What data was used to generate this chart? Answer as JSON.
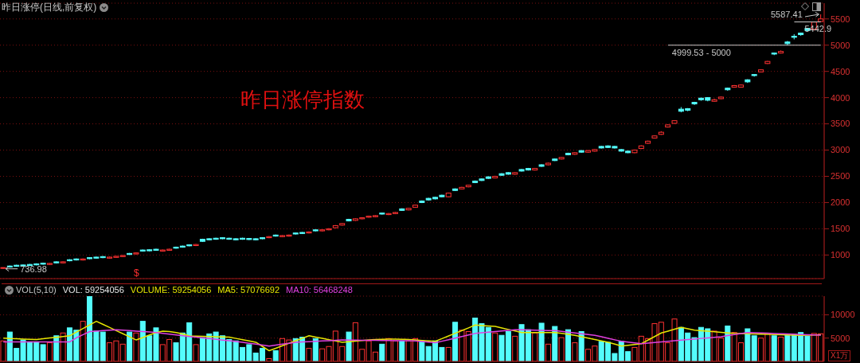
{
  "chart_data": [
    {
      "type": "candlestick",
      "title": "昨日涨停(日线,前复权)",
      "categories": [
        null,
        null,
        null,
        null,
        null,
        null,
        null,
        null,
        null,
        null,
        null,
        null,
        null,
        null,
        null,
        null,
        null,
        null,
        null,
        null,
        null,
        null,
        null,
        null,
        null,
        null,
        null,
        null,
        null,
        null,
        null,
        null,
        null,
        null,
        null,
        null,
        null,
        null,
        null,
        null,
        null,
        null,
        null,
        null,
        null,
        null,
        null,
        null,
        null,
        null,
        null,
        null,
        null,
        null,
        null,
        null,
        null,
        null,
        null,
        null,
        null,
        null,
        null,
        null,
        null,
        null,
        null,
        null,
        null,
        null,
        null,
        null,
        null,
        null,
        null,
        null,
        null,
        null,
        null,
        null,
        null,
        null,
        null,
        null,
        null,
        null,
        null,
        null,
        null,
        null,
        null,
        null,
        null,
        null,
        null,
        null,
        null,
        null,
        null,
        null,
        null,
        null,
        null,
        null,
        null,
        null,
        null,
        null,
        null,
        null,
        null,
        null,
        null,
        null,
        null,
        null,
        null,
        null,
        null,
        null,
        null,
        null,
        null,
        null
      ],
      "ohlc": [
        [
          745,
          765,
          736.98,
          760
        ],
        [
          790,
          800,
          760,
          770
        ],
        [
          805,
          815,
          775,
          785
        ],
        [
          810,
          820,
          780,
          790
        ],
        [
          820,
          830,
          790,
          800
        ],
        [
          832,
          842,
          802,
          812
        ],
        [
          845,
          855,
          815,
          825
        ],
        [
          820,
          850,
          810,
          840
        ],
        [
          870,
          880,
          840,
          850
        ],
        [
          850,
          880,
          840,
          870
        ],
        [
          910,
          920,
          880,
          890
        ],
        [
          925,
          935,
          895,
          905
        ],
        [
          905,
          935,
          895,
          925
        ],
        [
          950,
          960,
          920,
          930
        ],
        [
          960,
          970,
          930,
          940
        ],
        [
          970,
          980,
          940,
          950
        ],
        [
          940,
          970,
          930,
          960
        ],
        [
          955,
          985,
          945,
          975
        ],
        [
          970,
          1000,
          960,
          990
        ],
        [
          1030,
          1040,
          1000,
          1010
        ],
        [
          1020,
          1050,
          1010,
          1040
        ],
        [
          1095,
          1105,
          1065,
          1075
        ],
        [
          1100,
          1110,
          1070,
          1080
        ],
        [
          1110,
          1120,
          1080,
          1090
        ],
        [
          1075,
          1105,
          1065,
          1095
        ],
        [
          1090,
          1120,
          1080,
          1110
        ],
        [
          1150,
          1160,
          1120,
          1130
        ],
        [
          1170,
          1180,
          1140,
          1150
        ],
        [
          1195,
          1205,
          1165,
          1175
        ],
        [
          1180,
          1210,
          1170,
          1200
        ],
        [
          1300,
          1310,
          1250,
          1260
        ],
        [
          1310,
          1320,
          1280,
          1290
        ],
        [
          1320,
          1330,
          1290,
          1300
        ],
        [
          1330,
          1340,
          1300,
          1310
        ],
        [
          1320,
          1330,
          1290,
          1300
        ],
        [
          1310,
          1320,
          1280,
          1290
        ],
        [
          1320,
          1330,
          1290,
          1300
        ],
        [
          1315,
          1325,
          1285,
          1295
        ],
        [
          1310,
          1320,
          1280,
          1290
        ],
        [
          1330,
          1340,
          1300,
          1310
        ],
        [
          1330,
          1360,
          1320,
          1350
        ],
        [
          1380,
          1390,
          1350,
          1360
        ],
        [
          1350,
          1380,
          1340,
          1370
        ],
        [
          1360,
          1390,
          1350,
          1380
        ],
        [
          1420,
          1430,
          1390,
          1400
        ],
        [
          1430,
          1440,
          1400,
          1410
        ],
        [
          1420,
          1450,
          1410,
          1440
        ],
        [
          1480,
          1490,
          1450,
          1460
        ],
        [
          1460,
          1490,
          1450,
          1480
        ],
        [
          1480,
          1510,
          1470,
          1500
        ],
        [
          1520,
          1570,
          1510,
          1560
        ],
        [
          1570,
          1610,
          1560,
          1600
        ],
        [
          1680,
          1690,
          1640,
          1650
        ],
        [
          1660,
          1700,
          1650,
          1690
        ],
        [
          1690,
          1720,
          1680,
          1710
        ],
        [
          1720,
          1750,
          1710,
          1740
        ],
        [
          1730,
          1760,
          1720,
          1750
        ],
        [
          1800,
          1810,
          1770,
          1780
        ],
        [
          1770,
          1800,
          1760,
          1790
        ],
        [
          1790,
          1820,
          1780,
          1810
        ],
        [
          1880,
          1890,
          1840,
          1850
        ],
        [
          1860,
          1900,
          1850,
          1890
        ],
        [
          1910,
          1960,
          1900,
          1950
        ],
        [
          2030,
          2040,
          1990,
          2000
        ],
        [
          2080,
          2090,
          2040,
          2050
        ],
        [
          2100,
          2110,
          2060,
          2070
        ],
        [
          2140,
          2150,
          2100,
          2110
        ],
        [
          2110,
          2190,
          2100,
          2180
        ],
        [
          2260,
          2270,
          2220,
          2230
        ],
        [
          2260,
          2300,
          2250,
          2290
        ],
        [
          2300,
          2340,
          2290,
          2330
        ],
        [
          2410,
          2420,
          2370,
          2380
        ],
        [
          2450,
          2460,
          2410,
          2420
        ],
        [
          2490,
          2500,
          2450,
          2460
        ],
        [
          2470,
          2510,
          2460,
          2500
        ],
        [
          2550,
          2560,
          2510,
          2520
        ],
        [
          2570,
          2580,
          2530,
          2540
        ],
        [
          2540,
          2580,
          2530,
          2570
        ],
        [
          2630,
          2640,
          2590,
          2600
        ],
        [
          2650,
          2660,
          2610,
          2620
        ],
        [
          2620,
          2660,
          2610,
          2650
        ],
        [
          2720,
          2730,
          2680,
          2690
        ],
        [
          2720,
          2760,
          2710,
          2750
        ],
        [
          2830,
          2840,
          2790,
          2800
        ],
        [
          2830,
          2870,
          2820,
          2860
        ],
        [
          2940,
          2950,
          2900,
          2910
        ],
        [
          2920,
          2960,
          2910,
          2950
        ],
        [
          2990,
          3000,
          2950,
          2960
        ],
        [
          2960,
          3000,
          2950,
          2990
        ],
        [
          2980,
          3020,
          2970,
          3010
        ],
        [
          3070,
          3080,
          3030,
          3040
        ],
        [
          3080,
          3090,
          3040,
          3050
        ],
        [
          3070,
          3080,
          3030,
          3040
        ],
        [
          3010,
          3020,
          2970,
          2980
        ],
        [
          2980,
          2990,
          2940,
          2950
        ],
        [
          2950,
          3010,
          2940,
          3000
        ],
        [
          3030,
          3090,
          3020,
          3080
        ],
        [
          3130,
          3180,
          3120,
          3170
        ],
        [
          3230,
          3280,
          3220,
          3270
        ],
        [
          3300,
          3360,
          3290,
          3340
        ],
        [
          3440,
          3490,
          3430,
          3480
        ],
        [
          3510,
          3570,
          3500,
          3560
        ],
        [
          3780,
          3820,
          3720,
          3740
        ],
        [
          3790,
          3800,
          3740,
          3760
        ],
        [
          3910,
          3920,
          3860,
          3880
        ],
        [
          3990,
          4000,
          3940,
          3960
        ],
        [
          4000,
          4010,
          3930,
          3950
        ],
        [
          3930,
          3980,
          3920,
          3960
        ],
        [
          3980,
          4020,
          3970,
          4010
        ],
        [
          4180,
          4190,
          4130,
          4150
        ],
        [
          4200,
          4240,
          4190,
          4230
        ],
        [
          4200,
          4250,
          4190,
          4240
        ],
        [
          4340,
          4350,
          4280,
          4300
        ],
        [
          4440,
          4450,
          4400,
          4420
        ],
        [
          4490,
          4540,
          4480,
          4530
        ],
        [
          4650,
          4700,
          4640,
          4690
        ],
        [
          4850,
          4860,
          4810,
          4830
        ],
        [
          4850,
          4900,
          4840,
          4880
        ],
        [
          5060,
          5080,
          5000,
          5030
        ],
        [
          5170,
          5210,
          5110,
          5150
        ],
        [
          5230,
          5240,
          5180,
          5200
        ],
        [
          5320,
          5330,
          5260,
          5280
        ],
        [
          5300,
          5450,
          5280,
          5440
        ],
        [
          5450,
          5587.41,
          5440,
          5500
        ]
      ],
      "ylim": [
        550,
        5800
      ],
      "yticks": [
        1000,
        1500,
        2000,
        2500,
        3000,
        3500,
        4000,
        4500,
        5000,
        5500
      ],
      "grid": "y",
      "ref_lines": [
        {
          "axis": "y",
          "value": 5442.9,
          "label": "5442.9",
          "color": "#c8c8c8"
        },
        {
          "axis": "y",
          "value": 4999.53,
          "label": "4999.53 - 5000",
          "color": "#c8c8c8"
        }
      ],
      "annotations": [
        "昨日涨停指数",
        "5587.41",
        {
          "text": "736.98",
          "y": 736.98
        },
        "$"
      ]
    },
    {
      "type": "bar",
      "title": "VOL(5,10)",
      "ylabel": "X1万",
      "categories": [
        null,
        null,
        null,
        null,
        null,
        null,
        null,
        null,
        null,
        null,
        null,
        null,
        null,
        null,
        null,
        null,
        null,
        null,
        null,
        null,
        null,
        null,
        null,
        null,
        null,
        null,
        null,
        null,
        null,
        null,
        null,
        null,
        null,
        null,
        null,
        null,
        null,
        null,
        null,
        null,
        null,
        null,
        null,
        null,
        null,
        null,
        null,
        null,
        null,
        null,
        null,
        null,
        null,
        null,
        null,
        null,
        null,
        null,
        null,
        null,
        null,
        null,
        null,
        null,
        null,
        null,
        null,
        null,
        null,
        null,
        null,
        null,
        null,
        null,
        null,
        null,
        null,
        null,
        null,
        null,
        null,
        null,
        null,
        null,
        null,
        null,
        null,
        null,
        null,
        null,
        null,
        null,
        null,
        null,
        null,
        null,
        null,
        null,
        null,
        null,
        null,
        null,
        null,
        null,
        null,
        null,
        null,
        null,
        null,
        null,
        null,
        null,
        null,
        null,
        null,
        null,
        null,
        null,
        null,
        null,
        null,
        null,
        null,
        null
      ],
      "series": [
        {
          "type": "bar",
          "values": [
            4400,
            6300,
            2800,
            4600,
            4200,
            4200,
            3600,
            4000,
            5500,
            6100,
            7200,
            6700,
            8600,
            13900,
            6500,
            6300,
            4000,
            4400,
            3700,
            6300,
            6100,
            8600,
            5500,
            7200,
            3600,
            4700,
            4000,
            6100,
            8300,
            3600,
            5100,
            5900,
            6300,
            5500,
            4700,
            4400,
            3000,
            3600,
            1800,
            2800,
            600,
            2300,
            4900,
            4600,
            4900,
            5200,
            2800,
            4900,
            2700,
            3200,
            6500,
            3200,
            6300,
            8300,
            2600,
            4400,
            2000,
            3700,
            4900,
            4400,
            4400,
            4400,
            4900,
            4400,
            3200,
            4400,
            3000,
            3000,
            8400,
            6700,
            6400,
            9300,
            8100,
            7300,
            6100,
            5600,
            6400,
            5400,
            7900,
            6800,
            6100,
            8200,
            3700,
            7500,
            5100,
            6800,
            4000,
            6400,
            2600,
            3300,
            4300,
            4100,
            1700,
            4300,
            2100,
            3000,
            5400,
            4900,
            8100,
            8400,
            4000,
            9100,
            7300,
            6100,
            5100,
            7300,
            7000,
            6500,
            5000,
            7600,
            6200,
            4000,
            7000,
            5500,
            5000,
            6000,
            5500,
            5200,
            5600,
            5800,
            6200,
            5400,
            6000,
            5925.4056
          ],
          "colors": [
            "#ff3232",
            "#54fcfc",
            "#54fcfc",
            "#54fcfc",
            "#54fcfc",
            "#54fcfc",
            "#54fcfc",
            "#ff3232",
            "#54fcfc",
            "#ff3232",
            "#54fcfc",
            "#54fcfc",
            "#ff3232",
            "#54fcfc",
            "#54fcfc",
            "#54fcfc",
            "#ff3232",
            "#ff3232",
            "#ff3232",
            "#54fcfc",
            "#ff3232",
            "#54fcfc",
            "#54fcfc",
            "#54fcfc",
            "#ff3232",
            "#ff3232",
            "#54fcfc",
            "#54fcfc",
            "#54fcfc",
            "#ff3232",
            "#54fcfc",
            "#54fcfc",
            "#54fcfc",
            "#54fcfc",
            "#54fcfc",
            "#54fcfc",
            "#54fcfc",
            "#54fcfc",
            "#54fcfc",
            "#54fcfc",
            "#ff3232",
            "#54fcfc",
            "#ff3232",
            "#ff3232",
            "#54fcfc",
            "#54fcfc",
            "#ff3232",
            "#54fcfc",
            "#ff3232",
            "#ff3232",
            "#ff3232",
            "#ff3232",
            "#54fcfc",
            "#ff3232",
            "#ff3232",
            "#ff3232",
            "#ff3232",
            "#54fcfc",
            "#ff3232",
            "#ff3232",
            "#54fcfc",
            "#ff3232",
            "#ff3232",
            "#54fcfc",
            "#54fcfc",
            "#54fcfc",
            "#54fcfc",
            "#ff3232",
            "#54fcfc",
            "#ff3232",
            "#ff3232",
            "#54fcfc",
            "#54fcfc",
            "#54fcfc",
            "#ff3232",
            "#54fcfc",
            "#54fcfc",
            "#ff3232",
            "#54fcfc",
            "#54fcfc",
            "#ff3232",
            "#54fcfc",
            "#ff3232",
            "#54fcfc",
            "#ff3232",
            "#54fcfc",
            "#ff3232",
            "#54fcfc",
            "#ff3232",
            "#ff3232",
            "#54fcfc",
            "#54fcfc",
            "#54fcfc",
            "#54fcfc",
            "#54fcfc",
            "#ff3232",
            "#ff3232",
            "#ff3232",
            "#ff3232",
            "#ff3232",
            "#ff3232",
            "#ff3232",
            "#54fcfc",
            "#54fcfc",
            "#54fcfc",
            "#54fcfc",
            "#54fcfc",
            "#ff3232",
            "#ff3232",
            "#54fcfc",
            "#ff3232",
            "#ff3232",
            "#54fcfc",
            "#54fcfc",
            "#ff3232",
            "#ff3232",
            "#54fcfc",
            "#ff3232",
            "#54fcfc",
            "#54fcfc",
            "#54fcfc",
            "#54fcfc",
            "#ff3232",
            "#ff3232"
          ]
        },
        {
          "type": "line",
          "color": "#e6e600",
          "values": [
            5000,
            4900,
            4850,
            4800,
            4750,
            4700,
            4860,
            5020,
            5180,
            5340,
            5500,
            6280,
            7050,
            7830,
            8600,
            7930,
            7270,
            6600,
            5930,
            5270,
            4600,
            5130,
            5670,
            6200,
            6500,
            6400,
            6200,
            5900,
            5460,
            5410,
            5370,
            5330,
            5290,
            5240,
            5200,
            4930,
            4650,
            4380,
            4100,
            3200,
            2300,
            2830,
            3370,
            3900,
            4430,
            4970,
            5500,
            5220,
            4940,
            4660,
            4380,
            4100,
            4230,
            4350,
            4480,
            4600,
            4700,
            4750,
            4800,
            4800,
            4750,
            4700,
            4600,
            4500,
            4400,
            4300,
            4880,
            5460,
            6040,
            6620,
            7200,
            7800,
            7700,
            7600,
            7500,
            7180,
            6850,
            6530,
            6200,
            6200,
            6200,
            6200,
            6200,
            6200,
            6000,
            5800,
            5600,
            5300,
            5000,
            4700,
            4400,
            4100,
            3700,
            3300,
            3470,
            3630,
            3800,
            4570,
            5330,
            6100,
            6500,
            6900,
            7300,
            7000,
            6700,
            6580,
            6470,
            6350,
            6230,
            6120,
            6000,
            5960,
            5920,
            5880,
            5840,
            5800,
            5760,
            5720,
            5680,
            5640,
            5600,
            5640,
            5670,
            5707.6692
          ]
        },
        {
          "type": "line",
          "color": "#e040e0",
          "values": [
            4200,
            4200,
            4200,
            4200,
            4200,
            4200,
            4200,
            4200,
            4200,
            4200,
            4200,
            5070,
            5730,
            6400,
            6500,
            6600,
            6700,
            6800,
            6700,
            6600,
            6500,
            6400,
            6300,
            6200,
            6030,
            5850,
            5680,
            5500,
            5350,
            5200,
            5050,
            4900,
            4740,
            4580,
            4420,
            4260,
            4100,
            3900,
            3700,
            3500,
            3300,
            3500,
            3700,
            3900,
            4100,
            4170,
            4240,
            4310,
            4390,
            4460,
            4530,
            4600,
            4580,
            4560,
            4540,
            4530,
            4510,
            4490,
            4470,
            4450,
            4440,
            4420,
            4400,
            4270,
            4130,
            4000,
            4330,
            4670,
            5000,
            5330,
            5670,
            6000,
            6130,
            6270,
            6400,
            6530,
            6670,
            6800,
            6770,
            6730,
            6700,
            6670,
            6630,
            6600,
            6430,
            6270,
            6100,
            5930,
            5770,
            5600,
            5280,
            4950,
            4630,
            4300,
            4130,
            3970,
            3800,
            3930,
            4050,
            4180,
            4300,
            4430,
            4550,
            4680,
            4800,
            4930,
            5050,
            5180,
            5300,
            5530,
            5750,
            5980,
            6200,
            6150,
            6100,
            6040,
            5990,
            5940,
            5880,
            5830,
            5780,
            5730,
            5690,
            5646.8248
          ]
        }
      ],
      "ylim": [
        0,
        14000
      ],
      "yticks": [
        5000,
        10000
      ],
      "grid": "y",
      "annotations": [
        "VOL: 59254056",
        "VOLUME: 59254056",
        "MA5: 57076692",
        "MA10: 56468248"
      ]
    }
  ]
}
